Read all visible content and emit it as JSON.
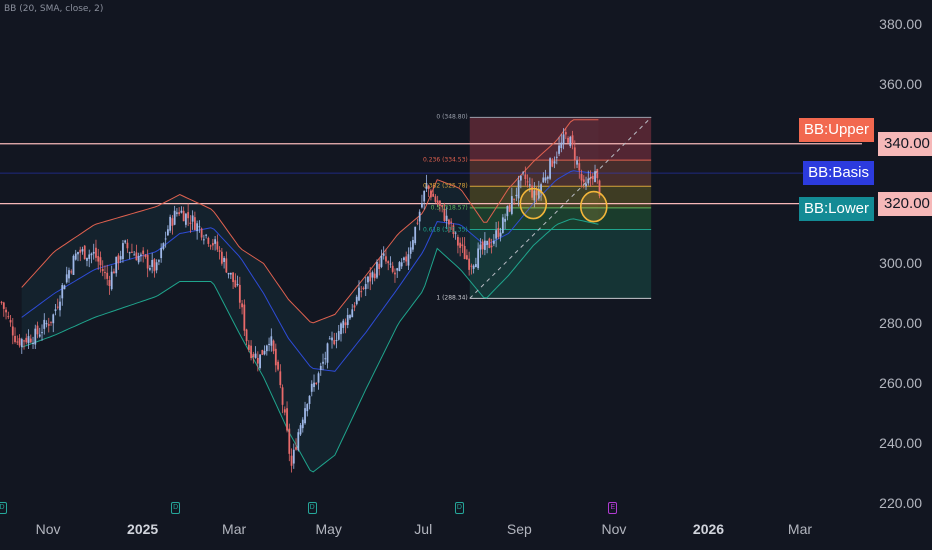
{
  "indicator_label": "BB (20, SMA, close, 2)",
  "colors": {
    "background": "#121621",
    "candle_up": "#9fb8e8",
    "candle_down": "#e86a6a",
    "bb_upper": "#e0614f",
    "bb_basis": "#2d4bd6",
    "bb_lower": "#1fa48c",
    "hline": "#f6b8b8",
    "circle": "#f3b63a"
  },
  "chart_data": {
    "type": "candlestick",
    "y_axis": {
      "ticks": [
        "380.00",
        "360.00",
        "340.00",
        "320.00",
        "300.00",
        "280.00",
        "260.00",
        "240.00",
        "220.00"
      ],
      "ylim": [
        216,
        388
      ]
    },
    "x_axis": {
      "ticks": [
        {
          "label": "Nov",
          "bold": false
        },
        {
          "label": "2025",
          "bold": true
        },
        {
          "label": "Mar",
          "bold": false
        },
        {
          "label": "May",
          "bold": false
        },
        {
          "label": "Jul",
          "bold": false
        },
        {
          "label": "Sep",
          "bold": false
        },
        {
          "label": "Nov",
          "bold": false
        },
        {
          "label": "2026",
          "bold": true
        },
        {
          "label": "Mar",
          "bold": false
        }
      ],
      "tick_dates": [
        "2024-11-01",
        "2025-01-01",
        "2025-03-01",
        "2025-05-01",
        "2025-07-01",
        "2025-09-01",
        "2025-11-01",
        "2026-01-01",
        "2026-03-01"
      ],
      "range": [
        "2024-10-01",
        "2026-04-10"
      ]
    },
    "close_path": [
      [
        "2024-10-02",
        287
      ],
      [
        "2024-10-12",
        274
      ],
      [
        "2024-10-24",
        276
      ],
      [
        "2024-11-04",
        282
      ],
      [
        "2024-11-12",
        295
      ],
      [
        "2024-11-20",
        304
      ],
      [
        "2024-12-01",
        303
      ],
      [
        "2024-12-10",
        294
      ],
      [
        "2024-12-20",
        306
      ],
      [
        "2025-01-02",
        301
      ],
      [
        "2025-01-10",
        298
      ],
      [
        "2025-01-18",
        313
      ],
      [
        "2025-01-24",
        318
      ],
      [
        "2025-02-03",
        314
      ],
      [
        "2025-02-10",
        310
      ],
      [
        "2025-02-17",
        306
      ],
      [
        "2025-02-24",
        299
      ],
      [
        "2025-03-04",
        290
      ],
      [
        "2025-03-10",
        272
      ],
      [
        "2025-03-17",
        268
      ],
      [
        "2025-03-24",
        276
      ],
      [
        "2025-03-31",
        258
      ],
      [
        "2025-04-07",
        232
      ],
      [
        "2025-04-11",
        243
      ],
      [
        "2025-04-17",
        255
      ],
      [
        "2025-04-24",
        262
      ],
      [
        "2025-05-01",
        272
      ],
      [
        "2025-05-08",
        278
      ],
      [
        "2025-05-15",
        284
      ],
      [
        "2025-05-22",
        291
      ],
      [
        "2025-05-29",
        296
      ],
      [
        "2025-06-05",
        302
      ],
      [
        "2025-06-12",
        296
      ],
      [
        "2025-06-19",
        300
      ],
      [
        "2025-06-26",
        312
      ],
      [
        "2025-07-03",
        326
      ],
      [
        "2025-07-10",
        320
      ],
      [
        "2025-07-17",
        314
      ],
      [
        "2025-07-24",
        306
      ],
      [
        "2025-07-31",
        300
      ],
      [
        "2025-08-07",
        304
      ],
      [
        "2025-08-14",
        307
      ],
      [
        "2025-08-21",
        313
      ],
      [
        "2025-08-28",
        322
      ],
      [
        "2025-09-04",
        329
      ],
      [
        "2025-09-11",
        322
      ],
      [
        "2025-09-18",
        330
      ],
      [
        "2025-09-25",
        337
      ],
      [
        "2025-10-02",
        343
      ],
      [
        "2025-10-07",
        336
      ],
      [
        "2025-10-13",
        324
      ],
      [
        "2025-10-19",
        331
      ],
      [
        "2025-10-23",
        324
      ]
    ],
    "bb_upper": [
      [
        "2024-10-15",
        292
      ],
      [
        "2024-11-05",
        304
      ],
      [
        "2024-12-01",
        313
      ],
      [
        "2025-01-10",
        319
      ],
      [
        "2025-01-25",
        323
      ],
      [
        "2025-02-15",
        318
      ],
      [
        "2025-03-05",
        305
      ],
      [
        "2025-03-20",
        300
      ],
      [
        "2025-04-05",
        288
      ],
      [
        "2025-04-20",
        280
      ],
      [
        "2025-05-05",
        283
      ],
      [
        "2025-05-25",
        296
      ],
      [
        "2025-06-15",
        310
      ],
      [
        "2025-07-01",
        317
      ],
      [
        "2025-07-10",
        328
      ],
      [
        "2025-07-25",
        325
      ],
      [
        "2025-08-10",
        313
      ],
      [
        "2025-08-25",
        325
      ],
      [
        "2025-09-10",
        334
      ],
      [
        "2025-09-25",
        341
      ],
      [
        "2025-10-05",
        348
      ],
      [
        "2025-10-23",
        348
      ]
    ],
    "bb_basis": [
      [
        "2024-10-15",
        282
      ],
      [
        "2024-11-05",
        290
      ],
      [
        "2024-12-01",
        298
      ],
      [
        "2025-01-10",
        304
      ],
      [
        "2025-01-25",
        310
      ],
      [
        "2025-02-15",
        312
      ],
      [
        "2025-03-05",
        302
      ],
      [
        "2025-03-20",
        290
      ],
      [
        "2025-04-05",
        275
      ],
      [
        "2025-04-20",
        265
      ],
      [
        "2025-05-05",
        264
      ],
      [
        "2025-05-25",
        277
      ],
      [
        "2025-06-15",
        292
      ],
      [
        "2025-07-01",
        304
      ],
      [
        "2025-07-10",
        314
      ],
      [
        "2025-07-25",
        313
      ],
      [
        "2025-08-10",
        306
      ],
      [
        "2025-08-25",
        310
      ],
      [
        "2025-09-10",
        320
      ],
      [
        "2025-09-25",
        328
      ],
      [
        "2025-10-05",
        331
      ],
      [
        "2025-10-23",
        330
      ]
    ],
    "bb_lower": [
      [
        "2024-10-15",
        272
      ],
      [
        "2024-11-05",
        276
      ],
      [
        "2024-12-01",
        282
      ],
      [
        "2025-01-10",
        289
      ],
      [
        "2025-01-25",
        294
      ],
      [
        "2025-02-15",
        294
      ],
      [
        "2025-03-05",
        276
      ],
      [
        "2025-03-20",
        262
      ],
      [
        "2025-04-05",
        244
      ],
      [
        "2025-04-20",
        230
      ],
      [
        "2025-05-05",
        236
      ],
      [
        "2025-05-25",
        258
      ],
      [
        "2025-06-15",
        280
      ],
      [
        "2025-07-01",
        291
      ],
      [
        "2025-07-10",
        305
      ],
      [
        "2025-07-25",
        298
      ],
      [
        "2025-08-10",
        288
      ],
      [
        "2025-08-25",
        296
      ],
      [
        "2025-09-10",
        306
      ],
      [
        "2025-09-25",
        313
      ],
      [
        "2025-10-05",
        315
      ],
      [
        "2025-10-23",
        313
      ]
    ],
    "hlines": [
      340,
      320
    ],
    "fib": {
      "start": "2025-07-31",
      "end": "2025-11-25",
      "levels": [
        {
          "label": "0 (348.80)",
          "value": 348.8,
          "fill": "#6a2c3a"
        },
        {
          "label": "0.236 (334.53)",
          "value": 334.53,
          "fill": "#5a3530"
        },
        {
          "label": "0.382 (325.78)",
          "value": 325.78,
          "fill": "#4e4a24"
        },
        {
          "label": "0.5 (318.57)",
          "value": 318.57,
          "fill": "#1e4a30"
        },
        {
          "label": "0.618 (311.35)",
          "value": 311.35,
          "fill": "#173f3c"
        },
        {
          "label": "1 (288.34)",
          "value": 288.34,
          "fill": "#20242f"
        }
      ],
      "level_colors": [
        "#9aa0ac",
        "#e0614f",
        "#d6a33a",
        "#5fb85f",
        "#1fa48c",
        "#c7c9cf"
      ]
    },
    "trendline": {
      "from": [
        "2025-07-31",
        288.34
      ],
      "to": [
        "2025-11-25",
        348.8
      ]
    },
    "circles": [
      [
        "2025-09-10",
        320
      ],
      [
        "2025-10-19",
        319
      ]
    ],
    "tags": [
      {
        "label": "BB:Upper",
        "value": 344.6,
        "color": "#f2684f"
      },
      {
        "label": "BB:Basis",
        "value": 330.2,
        "color": "#2c3bde"
      },
      {
        "label": "BB:Lower",
        "value": 318.1,
        "color": "#138b95"
      }
    ],
    "price_tags": [
      "340.00",
      "320.00"
    ],
    "event_markers": [
      {
        "date": "2024-10-02",
        "kind": "dividend"
      },
      {
        "date": "2025-01-22",
        "kind": "dividend"
      },
      {
        "date": "2025-04-20",
        "kind": "dividend"
      },
      {
        "date": "2025-07-24",
        "kind": "dividend"
      },
      {
        "date": "2025-10-31",
        "kind": "earnings"
      }
    ]
  }
}
